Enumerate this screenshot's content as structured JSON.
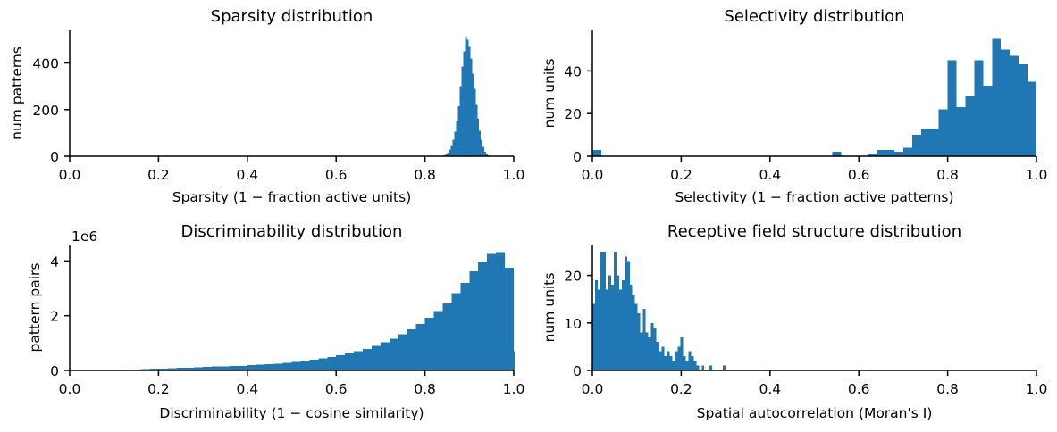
{
  "figure": {
    "background": "#ffffff",
    "bar_color": "#1f77b4"
  },
  "chart_data": [
    {
      "type": "bar",
      "title": "Sparsity distribution",
      "xlabel": "Sparsity (1 −  fraction active units)",
      "ylabel": "num patterns",
      "xlim": [
        0,
        1
      ],
      "ylim": [
        0,
        540
      ],
      "xticks": [
        0,
        0.2,
        0.4,
        0.6,
        0.8,
        1
      ],
      "xtick_labels": [
        "0.0",
        "0.2",
        "0.4",
        "0.6",
        "0.8",
        "1.0"
      ],
      "yticks": [
        0,
        200,
        400
      ],
      "ytick_labels": [
        "0",
        "200",
        "400"
      ],
      "offset_label": "",
      "bin_width": 0.004,
      "bins": [
        [
          0.842,
          3
        ],
        [
          0.846,
          8
        ],
        [
          0.85,
          15
        ],
        [
          0.854,
          28
        ],
        [
          0.858,
          45
        ],
        [
          0.862,
          70
        ],
        [
          0.866,
          105
        ],
        [
          0.87,
          150
        ],
        [
          0.874,
          215
        ],
        [
          0.878,
          300
        ],
        [
          0.882,
          385
        ],
        [
          0.886,
          450
        ],
        [
          0.89,
          510
        ],
        [
          0.894,
          500
        ],
        [
          0.898,
          470
        ],
        [
          0.902,
          420
        ],
        [
          0.906,
          355
        ],
        [
          0.91,
          290
        ],
        [
          0.914,
          220
        ],
        [
          0.918,
          160
        ],
        [
          0.922,
          110
        ],
        [
          0.926,
          70
        ],
        [
          0.93,
          40
        ],
        [
          0.934,
          20
        ],
        [
          0.938,
          9
        ],
        [
          0.942,
          3
        ]
      ]
    },
    {
      "type": "bar",
      "title": "Selectivity distribution",
      "xlabel": "Selectivity (1 −  fraction active patterns)",
      "ylabel": "num units",
      "xlim": [
        0,
        1
      ],
      "ylim": [
        0,
        59
      ],
      "xticks": [
        0,
        0.2,
        0.4,
        0.6,
        0.8,
        1
      ],
      "xtick_labels": [
        "0.0",
        "0.2",
        "0.4",
        "0.6",
        "0.8",
        "1.0"
      ],
      "yticks": [
        0,
        20,
        40
      ],
      "ytick_labels": [
        "0",
        "20",
        "40"
      ],
      "offset_label": "",
      "bin_width": 0.02,
      "bins": [
        [
          0.0,
          3
        ],
        [
          0.54,
          2
        ],
        [
          0.62,
          1
        ],
        [
          0.64,
          3
        ],
        [
          0.66,
          3
        ],
        [
          0.68,
          2
        ],
        [
          0.7,
          4
        ],
        [
          0.72,
          10
        ],
        [
          0.74,
          13
        ],
        [
          0.76,
          13
        ],
        [
          0.78,
          22
        ],
        [
          0.8,
          45
        ],
        [
          0.82,
          23
        ],
        [
          0.84,
          28
        ],
        [
          0.86,
          45
        ],
        [
          0.88,
          33
        ],
        [
          0.9,
          55
        ],
        [
          0.92,
          50
        ],
        [
          0.94,
          47
        ],
        [
          0.96,
          43
        ],
        [
          0.98,
          35
        ]
      ]
    },
    {
      "type": "bar",
      "title": "Discriminability distribution",
      "xlabel": "Discriminability (1 −  cosine similarity)",
      "ylabel": "pattern pairs",
      "xlim": [
        0,
        1
      ],
      "ylim": [
        0,
        4.6
      ],
      "xticks": [
        0,
        0.2,
        0.4,
        0.6,
        0.8,
        1
      ],
      "xtick_labels": [
        "0.0",
        "0.2",
        "0.4",
        "0.6",
        "0.8",
        "1.0"
      ],
      "yticks": [
        0,
        2,
        4
      ],
      "ytick_labels": [
        "0",
        "2",
        "4"
      ],
      "offset_label": "1e6",
      "bin_width": 0.02,
      "bins": [
        [
          0.08,
          0.01
        ],
        [
          0.1,
          0.02
        ],
        [
          0.12,
          0.03
        ],
        [
          0.14,
          0.04
        ],
        [
          0.16,
          0.05
        ],
        [
          0.18,
          0.06
        ],
        [
          0.2,
          0.07
        ],
        [
          0.22,
          0.08
        ],
        [
          0.24,
          0.09
        ],
        [
          0.26,
          0.1
        ],
        [
          0.28,
          0.12
        ],
        [
          0.3,
          0.13
        ],
        [
          0.32,
          0.14
        ],
        [
          0.34,
          0.15
        ],
        [
          0.36,
          0.16
        ],
        [
          0.38,
          0.17
        ],
        [
          0.4,
          0.19
        ],
        [
          0.42,
          0.21
        ],
        [
          0.44,
          0.23
        ],
        [
          0.46,
          0.25
        ],
        [
          0.48,
          0.28
        ],
        [
          0.5,
          0.31
        ],
        [
          0.52,
          0.35
        ],
        [
          0.54,
          0.39
        ],
        [
          0.56,
          0.44
        ],
        [
          0.58,
          0.49
        ],
        [
          0.6,
          0.55
        ],
        [
          0.62,
          0.62
        ],
        [
          0.64,
          0.7
        ],
        [
          0.66,
          0.79
        ],
        [
          0.68,
          0.9
        ],
        [
          0.7,
          1.02
        ],
        [
          0.72,
          1.16
        ],
        [
          0.74,
          1.32
        ],
        [
          0.76,
          1.5
        ],
        [
          0.78,
          1.7
        ],
        [
          0.8,
          1.92
        ],
        [
          0.82,
          2.17
        ],
        [
          0.84,
          2.45
        ],
        [
          0.86,
          2.82
        ],
        [
          0.88,
          3.2
        ],
        [
          0.9,
          3.62
        ],
        [
          0.92,
          3.97
        ],
        [
          0.94,
          4.25
        ],
        [
          0.96,
          4.32
        ],
        [
          0.98,
          3.75
        ],
        [
          1.0,
          0.7
        ]
      ]
    },
    {
      "type": "bar",
      "title": "Receptive field structure distribution",
      "xlabel": "Spatial autocorrelation (Moran's I)",
      "ylabel": "num units",
      "xlim": [
        0,
        1
      ],
      "ylim": [
        0,
        26.5
      ],
      "xticks": [
        0,
        0.2,
        0.4,
        0.6,
        0.8,
        1
      ],
      "xtick_labels": [
        "0.0",
        "0.2",
        "0.4",
        "0.6",
        "0.8",
        "1.0"
      ],
      "yticks": [
        0,
        10,
        20
      ],
      "ytick_labels": [
        "0",
        "10",
        "20"
      ],
      "offset_label": "",
      "bin_width": 0.006,
      "bins": [
        [
          0.0,
          14
        ],
        [
          0.006,
          19
        ],
        [
          0.012,
          17
        ],
        [
          0.018,
          25
        ],
        [
          0.024,
          25
        ],
        [
          0.03,
          17
        ],
        [
          0.036,
          20
        ],
        [
          0.042,
          18
        ],
        [
          0.048,
          25
        ],
        [
          0.054,
          20
        ],
        [
          0.06,
          17
        ],
        [
          0.066,
          19
        ],
        [
          0.072,
          24
        ],
        [
          0.078,
          23
        ],
        [
          0.084,
          18
        ],
        [
          0.09,
          16
        ],
        [
          0.096,
          14
        ],
        [
          0.102,
          12
        ],
        [
          0.108,
          8
        ],
        [
          0.114,
          13
        ],
        [
          0.12,
          8
        ],
        [
          0.126,
          7
        ],
        [
          0.132,
          10
        ],
        [
          0.138,
          9
        ],
        [
          0.144,
          6
        ],
        [
          0.15,
          4
        ],
        [
          0.156,
          5
        ],
        [
          0.162,
          3
        ],
        [
          0.168,
          4
        ],
        [
          0.174,
          3
        ],
        [
          0.18,
          2
        ],
        [
          0.186,
          4
        ],
        [
          0.192,
          5
        ],
        [
          0.198,
          7
        ],
        [
          0.204,
          3
        ],
        [
          0.21,
          2
        ],
        [
          0.216,
          4
        ],
        [
          0.222,
          3
        ],
        [
          0.228,
          2
        ],
        [
          0.234,
          1
        ],
        [
          0.246,
          1
        ],
        [
          0.264,
          1
        ],
        [
          0.294,
          1
        ]
      ]
    }
  ]
}
